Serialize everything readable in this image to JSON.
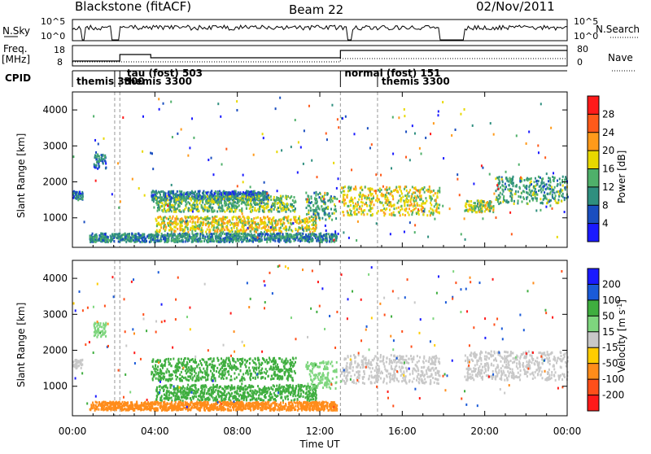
{
  "header": {
    "station": "Blackstone (fitACF)",
    "beam": "Beam 22",
    "date": "02/Nov/2011"
  },
  "top_panels": {
    "nsky_label": "N.Sky",
    "nsky_ticks": [
      "10^5",
      "10^0"
    ],
    "nsearch_label": "N.Search",
    "nsearch_ticks": [
      "10^5",
      "10^0"
    ],
    "freq_label": "Freq.",
    "freq_unit": "[MHz]",
    "freq_ticks": [
      "18",
      "8"
    ],
    "nave_label": "Nave",
    "nave_ticks": [
      "80",
      "0"
    ],
    "cpid_label": "CPID",
    "cpid_segments": [
      {
        "label": "themis 3300",
        "start": 0.0
      },
      {
        "label": "tau (fost) 503",
        "start": 2.05
      },
      {
        "label": "themis 3300",
        "start": 2.3
      },
      {
        "label": "normal (fost) 151",
        "start": 13.0
      },
      {
        "label": "themis 3300",
        "start": 14.8
      }
    ]
  },
  "power_panel": {
    "ylabel": "Slant Range [km]",
    "yticks": [
      "1000",
      "2000",
      "3000",
      "4000"
    ],
    "colorbar_label": "Power [dB]",
    "colorbar_ticks": [
      "4",
      "8",
      "12",
      "16",
      "20",
      "24",
      "28"
    ],
    "colors": [
      "#1a1aff",
      "#1a4ec0",
      "#2f8f7f",
      "#4fb06a",
      "#e8d800",
      "#ff9a1a",
      "#ff5a1a",
      "#ff1a1a"
    ]
  },
  "velocity_panel": {
    "ylabel": "Slant Range [km]",
    "yticks": [
      "1000",
      "2000",
      "3000",
      "4000"
    ],
    "colorbar_label": "Velocity [m s^-1]",
    "colorbar_ticks": [
      "200",
      "100",
      "50",
      "15",
      "-15",
      "-50",
      "-100",
      "-200"
    ],
    "colors": [
      "#1a1aff",
      "#1a5ad8",
      "#3fae3f",
      "#7ed67e",
      "#c8c8c8",
      "#ffcc00",
      "#ff8c1a",
      "#ff4f1a",
      "#ff1a1a"
    ]
  },
  "x_axis": {
    "label": "Time UT",
    "ticks": [
      "00:00",
      "04:00",
      "08:00",
      "12:00",
      "16:00",
      "20:00",
      "00:00"
    ]
  },
  "chart_data": [
    {
      "type": "heatmap",
      "title": "Blackstone (fitACF) Beam 22 02/Nov/2011",
      "xlabel": "Time UT",
      "ylabel": "Slant Range [km]",
      "colorbar": "Power [dB]",
      "xlim": [
        0,
        24
      ],
      "ylim": [
        180,
        4500
      ],
      "zlim": [
        0,
        30
      ],
      "bands": [
        {
          "t_start": 0.0,
          "t_end": 0.5,
          "range_center": 1650,
          "width": 120,
          "value": 8
        },
        {
          "t_start": 1.0,
          "t_end": 1.6,
          "range_center": 2600,
          "width": 200,
          "value": 8
        },
        {
          "t_start": 3.8,
          "t_end": 9.5,
          "range_center": 1650,
          "width": 130,
          "value": 8
        },
        {
          "t_start": 3.9,
          "t_end": 10.8,
          "range_center": 1420,
          "width": 220,
          "value": 14
        },
        {
          "t_start": 4.0,
          "t_end": 11.8,
          "range_center": 850,
          "width": 220,
          "value": 18
        },
        {
          "t_start": 11.3,
          "t_end": 12.8,
          "range_center": 1350,
          "width": 380,
          "value": 12
        },
        {
          "t_start": 13.0,
          "t_end": 17.8,
          "range_center": 1500,
          "width": 400,
          "value": 18
        },
        {
          "t_start": 19.0,
          "t_end": 20.4,
          "range_center": 1350,
          "width": 160,
          "value": 16
        },
        {
          "t_start": 20.5,
          "t_end": 24.0,
          "range_center": 1800,
          "width": 380,
          "value": 12
        },
        {
          "t_start": 0.8,
          "t_end": 12.8,
          "range_center": 480,
          "width": 120,
          "value": 10
        }
      ]
    },
    {
      "type": "heatmap",
      "title": "Blackstone (fitACF) Beam 22 02/Nov/2011",
      "xlabel": "Time UT",
      "ylabel": "Slant Range [km]",
      "colorbar": "Velocity [m s^-1]",
      "xlim": [
        0,
        24
      ],
      "ylim": [
        180,
        4500
      ],
      "zlim": [
        -250,
        250
      ],
      "bands": [
        {
          "t_start": 0.0,
          "t_end": 0.5,
          "range_center": 1650,
          "width": 120,
          "value": 0
        },
        {
          "t_start": 1.0,
          "t_end": 1.6,
          "range_center": 2600,
          "width": 200,
          "value": 20
        },
        {
          "t_start": 3.8,
          "t_end": 10.8,
          "range_center": 1500,
          "width": 320,
          "value": 60
        },
        {
          "t_start": 4.0,
          "t_end": 11.8,
          "range_center": 850,
          "width": 220,
          "value": 60
        },
        {
          "t_start": 11.3,
          "t_end": 12.8,
          "range_center": 1350,
          "width": 380,
          "value": 20
        },
        {
          "t_start": 13.0,
          "t_end": 17.8,
          "range_center": 1500,
          "width": 400,
          "value": 0
        },
        {
          "t_start": 19.0,
          "t_end": 24.0,
          "range_center": 1600,
          "width": 400,
          "value": 0
        },
        {
          "t_start": 0.8,
          "t_end": 12.8,
          "range_center": 480,
          "width": 120,
          "value": -60
        }
      ]
    }
  ]
}
